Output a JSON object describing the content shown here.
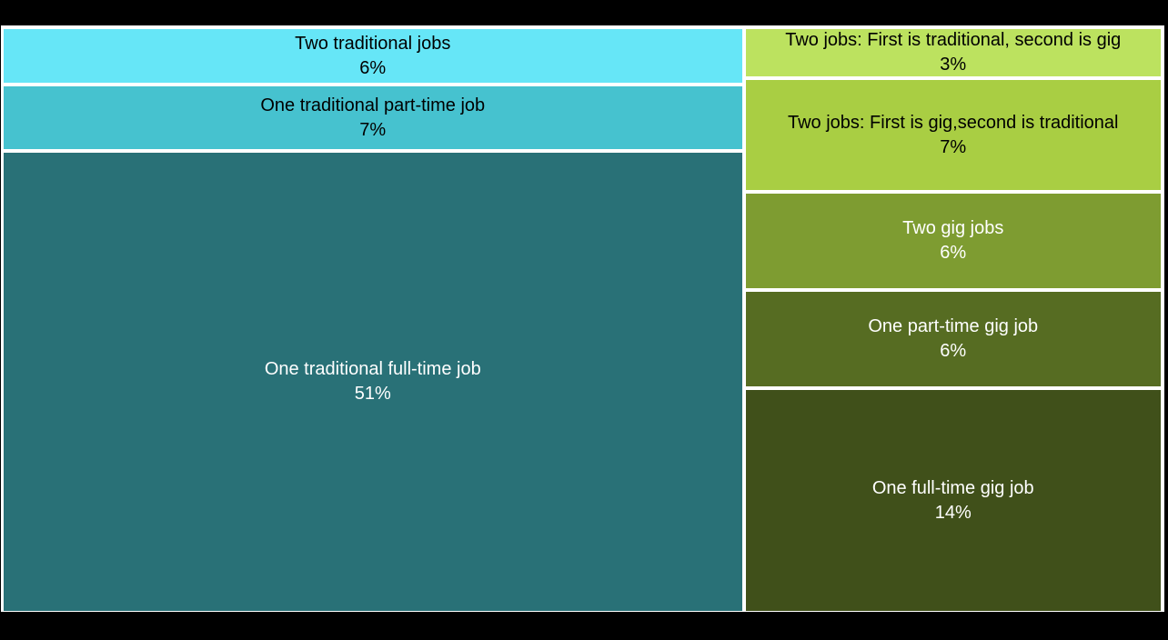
{
  "page": {
    "background_color": "#000000",
    "grid_line_color": "#ffffff"
  },
  "chart_data": {
    "type": "treemap",
    "title": "",
    "unit": "%",
    "layout": "two columns, cells stacked vertically, sized by value",
    "columns": [
      {
        "name": "traditional-jobs",
        "total": 64,
        "cells": [
          {
            "label": "Two traditional jobs",
            "value": 6,
            "value_label": "6%",
            "color": "#66E6F7",
            "text_color": "#000000"
          },
          {
            "label": "One traditional part-time job",
            "value": 7,
            "value_label": "7%",
            "color": "#46C2CF",
            "text_color": "#000000"
          },
          {
            "label": "One traditional full-time job",
            "value": 51,
            "value_label": "51%",
            "color": "#297177",
            "text_color": "#ffffff"
          }
        ]
      },
      {
        "name": "gig-jobs",
        "total": 36,
        "cells": [
          {
            "label": "Two jobs: First is traditional, second is gig",
            "value": 3,
            "value_label": "3%",
            "color": "#BCE25F",
            "text_color": "#000000"
          },
          {
            "label": "Two jobs: First is gig,second is traditional",
            "value": 7,
            "value_label": "7%",
            "color": "#A9CE43",
            "text_color": "#000000"
          },
          {
            "label": "Two gig jobs",
            "value": 6,
            "value_label": "6%",
            "color": "#7E9C31",
            "text_color": "#ffffff"
          },
          {
            "label": "One part-time gig job",
            "value": 6,
            "value_label": "6%",
            "color": "#566C22",
            "text_color": "#ffffff"
          },
          {
            "label": "One full-time gig job",
            "value": 14,
            "value_label": "14%",
            "color": "#40501A",
            "text_color": "#ffffff"
          }
        ]
      }
    ]
  }
}
